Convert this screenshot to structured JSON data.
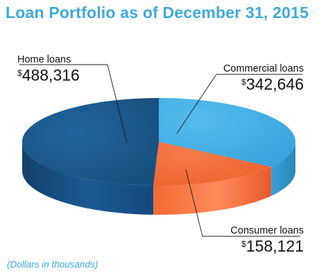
{
  "chart_data": {
    "type": "pie",
    "title": "Loan Portfolio as of December 31, 2015",
    "note": "(Dollars in thousands)",
    "currency_symbol": "$",
    "categories": [
      "Home loans",
      "Commercial loans",
      "Consumer loans"
    ],
    "values": [
      488316,
      342646,
      158121
    ],
    "value_labels": [
      "488,316",
      "342,646",
      "158,121"
    ],
    "colors": {
      "home_top": "#1d5c96",
      "home_side": "#174a7c",
      "commercial_top": "#42ade2",
      "commercial_side": "#2f8fc6",
      "consumer_top": "#f06a35",
      "consumer_side": "#e0561f"
    }
  }
}
